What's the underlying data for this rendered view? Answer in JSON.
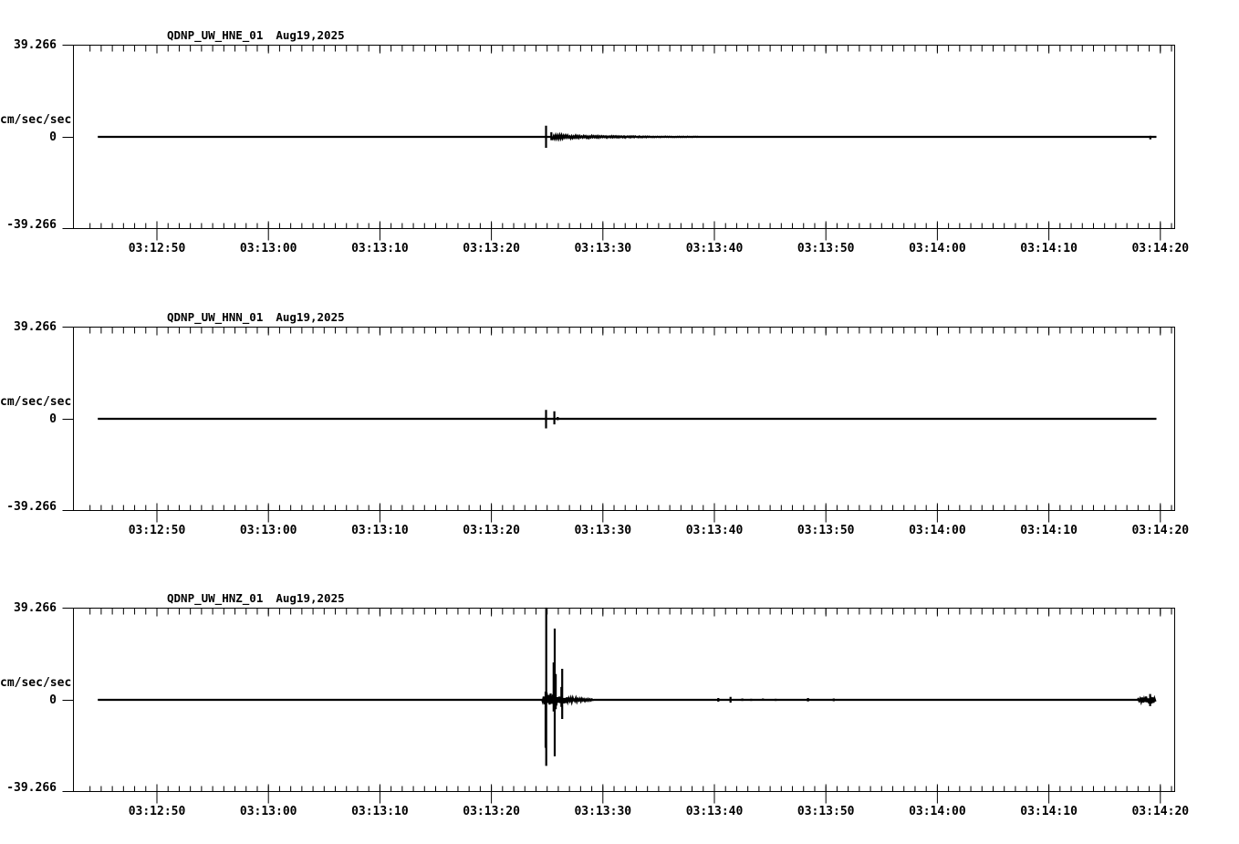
{
  "window": {
    "background": "#ffffff",
    "foreground": "#000000"
  },
  "charts": [
    {
      "title": "QDNP_UW_HNE_01",
      "date": "Aug19,2025",
      "y_axis": {
        "max_label": "39.266",
        "unit": "cm/sec/sec",
        "zero_label": "0",
        "min_label": "-39.266"
      }
    },
    {
      "title": "QDNP_UW_HNN_01",
      "date": "Aug19,2025",
      "y_axis": {
        "max_label": "39.266",
        "unit": "cm/sec/sec",
        "zero_label": "0",
        "min_label": "-39.266"
      }
    },
    {
      "title": "QDNP_UW_HNZ_01",
      "date": "Aug19,2025",
      "y_axis": {
        "max_label": "39.266",
        "unit": "cm/sec/sec",
        "zero_label": "0",
        "min_label": "-39.266"
      }
    }
  ],
  "chart_data": [
    {
      "type": "line",
      "title": "QDNP_UW_HNE_01",
      "date": "Aug19,2025",
      "ylabel": "cm/sec/sec",
      "ylim": [
        -39.266,
        39.266
      ],
      "y_tick_labels": [
        "39.266",
        "0",
        "-39.266"
      ],
      "x_tick_labels": [
        "03:12:50",
        "03:13:00",
        "03:13:10",
        "03:13:20",
        "03:13:30",
        "03:13:40",
        "03:13:50",
        "03:14:00",
        "03:14:10",
        "03:14:20"
      ],
      "x_minor_tick_seconds": 1,
      "x_major_tick_seconds": 10,
      "time_reference": "seconds after 03:12:00",
      "trace_span_seconds": [
        44.7,
        139.65
      ],
      "segment_format": [
        "flat t0 t1",
        "spike t up down",
        "noise t0 t1 amp0 amp1"
      ],
      "noise_seed": 1,
      "segments": [
        [
          "flat",
          44.7,
          84.82
        ],
        [
          "spike",
          84.9,
          4.8,
          -4.7
        ],
        [
          "flat",
          84.95,
          85.3
        ],
        [
          "spike",
          85.38,
          2.0,
          -1.4
        ],
        [
          "noise",
          85.5,
          86.3,
          0.9,
          0.7
        ],
        [
          "noise",
          86.3,
          92.0,
          0.7,
          0.25
        ],
        [
          "noise",
          92.0,
          98.5,
          0.25,
          0.08
        ],
        [
          "flat",
          98.5,
          138.95
        ],
        [
          "spike",
          139.1,
          0.5,
          -1.1
        ],
        [
          "flat",
          139.2,
          139.65
        ]
      ]
    },
    {
      "type": "line",
      "title": "QDNP_UW_HNN_01",
      "date": "Aug19,2025",
      "ylabel": "cm/sec/sec",
      "ylim": [
        -39.266,
        39.266
      ],
      "y_tick_labels": [
        "39.266",
        "0",
        "-39.266"
      ],
      "x_tick_labels": [
        "03:12:50",
        "03:13:00",
        "03:13:10",
        "03:13:20",
        "03:13:30",
        "03:13:40",
        "03:13:50",
        "03:14:00",
        "03:14:10",
        "03:14:20"
      ],
      "x_minor_tick_seconds": 1,
      "x_major_tick_seconds": 10,
      "time_reference": "seconds after 03:12:00",
      "trace_span_seconds": [
        44.7,
        139.65
      ],
      "segment_format": [
        "flat t0 t1",
        "spike t up down",
        "noise t0 t1 amp0 amp1"
      ],
      "noise_seed": 2,
      "segments": [
        [
          "flat",
          44.7,
          84.85
        ],
        [
          "spike",
          84.9,
          3.8,
          -4.1
        ],
        [
          "flat",
          84.95,
          85.58
        ],
        [
          "spike",
          85.65,
          3.2,
          -2.4
        ],
        [
          "spike",
          85.95,
          0.8,
          -0.6
        ],
        [
          "flat",
          86.0,
          139.65
        ]
      ]
    },
    {
      "type": "line",
      "title": "QDNP_UW_HNZ_01",
      "date": "Aug19,2025",
      "ylabel": "cm/sec/sec",
      "ylim": [
        -39.266,
        39.266
      ],
      "y_tick_labels": [
        "39.266",
        "0",
        "-39.266"
      ],
      "x_tick_labels": [
        "03:12:50",
        "03:13:00",
        "03:13:10",
        "03:13:20",
        "03:13:30",
        "03:13:40",
        "03:13:50",
        "03:14:00",
        "03:14:10",
        "03:14:20"
      ],
      "x_minor_tick_seconds": 1,
      "x_major_tick_seconds": 10,
      "time_reference": "seconds after 03:12:00",
      "trace_span_seconds": [
        44.7,
        139.65
      ],
      "segment_format": [
        "flat t0 t1",
        "spike t up down",
        "noise t0 t1 amp0 amp1"
      ],
      "noise_seed": 3,
      "segments": [
        [
          "flat",
          44.7,
          84.55
        ],
        [
          "noise",
          84.6,
          84.82,
          1.4,
          2.6
        ],
        [
          "spike",
          84.86,
          3.5,
          -20.5
        ],
        [
          "spike",
          84.92,
          39.5,
          -28.3
        ],
        [
          "noise",
          84.95,
          85.52,
          3.2,
          2.6
        ],
        [
          "spike",
          85.58,
          16.0,
          -5.0
        ],
        [
          "spike",
          85.68,
          30.5,
          -24.2
        ],
        [
          "spike",
          85.77,
          11.0,
          -4.0
        ],
        [
          "noise",
          85.82,
          86.2,
          2.6,
          2.0
        ],
        [
          "spike",
          86.28,
          5.5,
          -3.0
        ],
        [
          "spike",
          86.35,
          13.3,
          -8.2
        ],
        [
          "noise",
          86.4,
          87.4,
          2.0,
          0.9
        ],
        [
          "noise",
          87.4,
          89.2,
          0.9,
          0.25
        ],
        [
          "flat",
          89.2,
          100.2
        ],
        [
          "spike",
          100.35,
          0.8,
          -0.8
        ],
        [
          "spike",
          101.45,
          1.3,
          -1.2
        ],
        [
          "spike",
          102.5,
          0.6,
          -0.5
        ],
        [
          "spike",
          103.3,
          0.5,
          -0.5
        ],
        [
          "spike",
          104.35,
          0.6,
          -0.4
        ],
        [
          "spike",
          105.5,
          0.5,
          -0.5
        ],
        [
          "spike",
          108.4,
          0.8,
          -0.7
        ],
        [
          "spike",
          110.7,
          0.6,
          -0.6
        ],
        [
          "flat",
          110.8,
          137.95
        ],
        [
          "noise",
          138.0,
          139.02,
          0.8,
          1.8
        ],
        [
          "spike",
          139.08,
          2.5,
          -2.7
        ],
        [
          "noise",
          139.12,
          139.6,
          1.9,
          0.7
        ]
      ]
    }
  ]
}
